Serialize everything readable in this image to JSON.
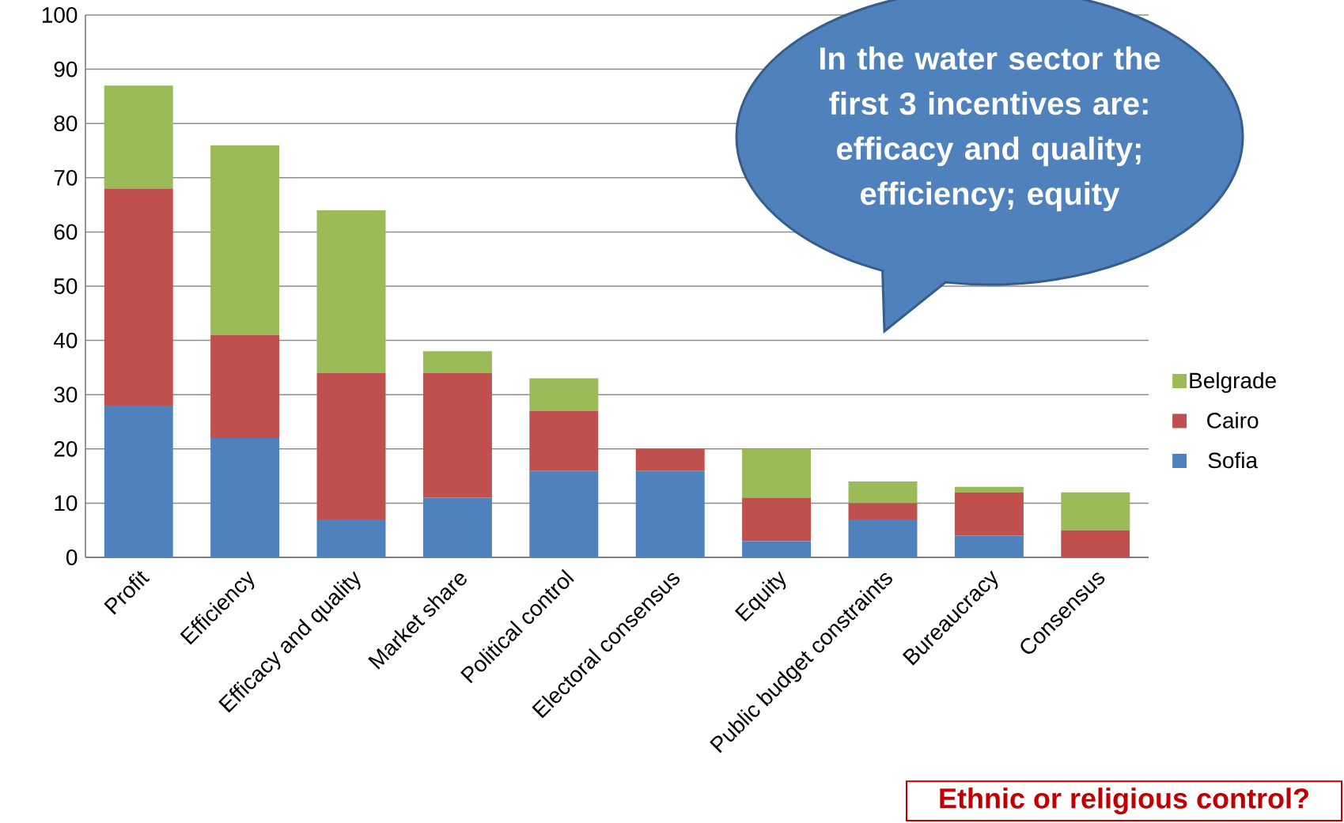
{
  "chart_data": {
    "type": "bar",
    "stacked": true,
    "categories": [
      "Profit",
      "Efficiency",
      "Efficacy and quality",
      "Market share",
      "Political control",
      "Electoral consensus",
      "Equity",
      "Public budget constraints",
      "Bureaucracy",
      "Consensus"
    ],
    "series": [
      {
        "name": "Sofia",
        "color": "#4f81bd",
        "values": [
          28,
          22,
          7,
          11,
          16,
          16,
          3,
          7,
          4,
          0
        ]
      },
      {
        "name": "Cairo",
        "color": "#c0504d",
        "values": [
          40,
          19,
          27,
          23,
          11,
          4,
          8,
          3,
          8,
          5
        ]
      },
      {
        "name": "Belgrade",
        "color": "#9bbb59",
        "values": [
          19,
          35,
          30,
          4,
          6,
          0,
          9,
          4,
          1,
          7
        ]
      }
    ],
    "ylim": [
      0,
      100
    ],
    "yticks": [
      0,
      10,
      20,
      30,
      40,
      50,
      60,
      70,
      80,
      90,
      100
    ],
    "grid": "y",
    "legend": "right",
    "annotations": [
      "In the water sector the first 3 incentives are: efficacy and quality; efficiency; equity",
      "Ethnic or religious control?"
    ]
  }
}
